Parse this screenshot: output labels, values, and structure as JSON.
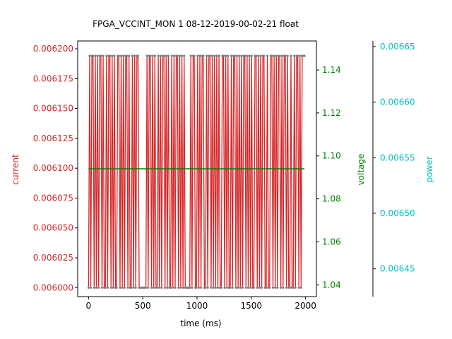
{
  "chart_data": {
    "type": "line",
    "title": "FPGA_VCCINT_MON   1   08-12-2019-00-02-21   float",
    "xlabel": "time (ms)",
    "xlim": [
      -100,
      2100
    ],
    "x_ticks": [
      "0",
      "500",
      "1000",
      "1500",
      "2000"
    ],
    "axes": {
      "current": {
        "label": "current",
        "color": "#d62728",
        "ylim": [
          0.0059925,
          0.0062065
        ],
        "ticks": [
          "0.00600",
          "0.00602",
          "0.00605",
          "0.00607",
          "0.00610",
          "0.00612",
          "0.00615",
          "0.00617",
          "0.00620"
        ],
        "tick_labels": [
          "0.006000",
          "0.006025",
          "0.006050",
          "0.006075",
          "0.006100",
          "0.006125",
          "0.006150",
          "0.006175",
          "0.006200"
        ]
      },
      "voltage": {
        "label": "voltage",
        "color": "#008000",
        "ylim": [
          1.0345,
          1.1535
        ],
        "tick_labels": [
          "1.04",
          "1.06",
          "1.08",
          "1.10",
          "1.12",
          "1.14"
        ]
      },
      "power": {
        "label": "power",
        "color": "#00bfbf",
        "ylim": [
          0.006425,
          0.006655
        ],
        "tick_labels": [
          "0.00645",
          "0.00650",
          "0.00655",
          "0.00660",
          "0.00665"
        ]
      }
    },
    "series": [
      {
        "axis": "current",
        "color": "#d62728",
        "marker_color": "#7f7f7f",
        "low": 0.006,
        "high": 0.006194,
        "x_range": [
          0,
          1990
        ],
        "pattern": [
          0,
          1,
          0,
          1,
          1,
          0,
          1,
          0,
          1,
          0,
          1,
          1,
          0,
          1,
          0,
          0,
          1,
          0,
          1,
          1,
          0,
          1,
          0,
          1,
          0,
          0,
          1,
          1,
          0,
          1,
          0,
          1,
          0,
          1,
          1,
          0,
          1,
          0,
          0,
          1,
          0,
          1,
          0,
          1,
          1,
          0,
          0,
          0,
          0,
          0,
          0,
          0,
          1,
          0,
          1,
          1,
          0,
          1,
          0,
          1,
          0,
          0,
          1,
          0,
          1,
          0,
          1,
          1,
          0,
          1,
          0,
          1,
          0,
          0,
          1,
          0,
          1,
          0,
          1,
          1,
          0,
          1,
          0,
          1,
          0,
          1,
          0,
          0,
          0,
          0,
          0,
          1,
          0,
          1,
          1,
          0,
          0,
          1,
          0,
          1,
          0,
          1,
          1,
          0,
          0,
          1,
          0,
          1,
          1,
          0,
          1,
          0,
          1,
          0,
          1,
          0,
          1,
          0,
          0,
          1,
          1,
          0,
          1,
          0,
          1,
          0,
          0,
          1,
          0,
          1,
          1,
          0,
          1,
          0,
          1,
          0,
          1,
          0,
          1,
          1,
          0,
          1,
          0,
          1,
          0,
          1,
          0,
          0,
          1,
          1,
          0,
          1,
          0,
          1,
          0,
          1,
          1,
          0,
          0,
          1,
          0,
          0,
          1,
          1,
          0,
          1,
          0,
          1,
          0,
          1,
          1,
          0,
          1,
          0,
          1,
          1,
          0,
          1,
          0,
          0,
          1,
          0,
          0,
          1,
          0,
          1,
          1,
          0,
          1,
          0,
          1,
          1,
          1
        ]
      },
      {
        "axis": "voltage",
        "color": "#008000",
        "value": 1.094,
        "x_range": [
          0,
          1990
        ]
      }
    ],
    "grid": false
  }
}
